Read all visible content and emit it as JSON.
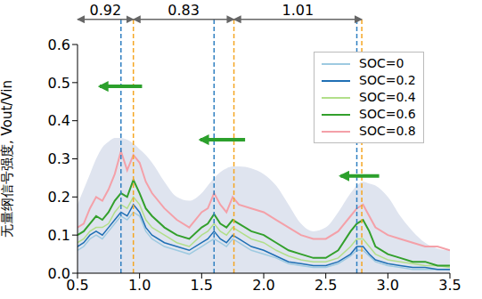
{
  "chart_data": {
    "type": "line",
    "y_label": "无量纲信号强度, Vout/Vin",
    "x": [
      0.5,
      0.55,
      0.6,
      0.65,
      0.7,
      0.75,
      0.8,
      0.85,
      0.9,
      0.95,
      1.0,
      1.05,
      1.1,
      1.2,
      1.3,
      1.4,
      1.5,
      1.55,
      1.6,
      1.65,
      1.7,
      1.75,
      1.8,
      1.9,
      2.0,
      2.1,
      2.2,
      2.3,
      2.4,
      2.5,
      2.6,
      2.7,
      2.75,
      2.8,
      2.85,
      2.9,
      3.0,
      3.1,
      3.2,
      3.3,
      3.4,
      3.5
    ],
    "series": [
      {
        "name": "SOC=0",
        "color": "#9ecae1",
        "values": [
          0.06,
          0.07,
          0.09,
          0.1,
          0.09,
          0.11,
          0.13,
          0.15,
          0.14,
          0.16,
          0.15,
          0.11,
          0.09,
          0.07,
          0.06,
          0.05,
          0.07,
          0.08,
          0.09,
          0.08,
          0.07,
          0.09,
          0.08,
          0.06,
          0.05,
          0.04,
          0.025,
          0.02,
          0.015,
          0.015,
          0.025,
          0.045,
          0.06,
          0.06,
          0.045,
          0.03,
          0.02,
          0.015,
          0.01,
          0.01,
          0.01,
          0.008
        ]
      },
      {
        "name": "SOC=0.2",
        "color": "#1f6fb4",
        "values": [
          0.07,
          0.08,
          0.1,
          0.11,
          0.1,
          0.12,
          0.14,
          0.16,
          0.15,
          0.18,
          0.16,
          0.12,
          0.1,
          0.08,
          0.07,
          0.06,
          0.08,
          0.09,
          0.11,
          0.09,
          0.08,
          0.1,
          0.09,
          0.07,
          0.06,
          0.045,
          0.03,
          0.025,
          0.02,
          0.02,
          0.03,
          0.05,
          0.07,
          0.07,
          0.05,
          0.035,
          0.025,
          0.02,
          0.015,
          0.015,
          0.01,
          0.01
        ]
      },
      {
        "name": "SOC=0.4",
        "color": "#b2df8a",
        "values": [
          0.08,
          0.09,
          0.11,
          0.12,
          0.12,
          0.13,
          0.16,
          0.18,
          0.17,
          0.2,
          0.18,
          0.14,
          0.12,
          0.1,
          0.08,
          0.07,
          0.1,
          0.11,
          0.13,
          0.11,
          0.1,
          0.12,
          0.11,
          0.09,
          0.08,
          0.06,
          0.045,
          0.035,
          0.03,
          0.03,
          0.04,
          0.07,
          0.09,
          0.09,
          0.07,
          0.05,
          0.035,
          0.03,
          0.025,
          0.02,
          0.02,
          0.015
        ]
      },
      {
        "name": "SOC=0.6",
        "color": "#33a02c",
        "values": [
          0.1,
          0.11,
          0.13,
          0.15,
          0.14,
          0.16,
          0.19,
          0.21,
          0.2,
          0.245,
          0.21,
          0.17,
          0.15,
          0.12,
          0.1,
          0.09,
          0.12,
          0.13,
          0.155,
          0.13,
          0.12,
          0.14,
          0.13,
          0.11,
          0.1,
          0.08,
          0.06,
          0.05,
          0.04,
          0.04,
          0.06,
          0.11,
          0.13,
          0.14,
          0.11,
          0.07,
          0.05,
          0.04,
          0.03,
          0.03,
          0.02,
          0.02
        ]
      },
      {
        "name": "SOC=0.8",
        "color": "#f4a0a8",
        "values": [
          0.12,
          0.13,
          0.17,
          0.2,
          0.19,
          0.22,
          0.26,
          0.32,
          0.27,
          0.31,
          0.29,
          0.24,
          0.21,
          0.17,
          0.14,
          0.12,
          0.16,
          0.17,
          0.21,
          0.18,
          0.16,
          0.2,
          0.18,
          0.17,
          0.16,
          0.14,
          0.12,
          0.1,
          0.09,
          0.09,
          0.11,
          0.15,
          0.17,
          0.18,
          0.15,
          0.12,
          0.1,
          0.09,
          0.08,
          0.07,
          0.07,
          0.06
        ]
      }
    ],
    "band": {
      "color": "#dfe4ef",
      "values": [
        0.18,
        0.22,
        0.26,
        0.3,
        0.33,
        0.345,
        0.355,
        0.355,
        0.35,
        0.34,
        0.325,
        0.31,
        0.29,
        0.24,
        0.2,
        0.19,
        0.21,
        0.23,
        0.25,
        0.265,
        0.275,
        0.28,
        0.28,
        0.275,
        0.26,
        0.23,
        0.18,
        0.13,
        0.11,
        0.12,
        0.16,
        0.21,
        0.23,
        0.24,
        0.235,
        0.23,
        0.2,
        0.15,
        0.11,
        0.08,
        0.065,
        0.06
      ]
    },
    "xlim": [
      0.5,
      3.5
    ],
    "xticks": [
      0.5,
      {
        "value": 1,
        "label": "1.0"
      },
      1.5,
      {
        "value": 2,
        "label": "2.0"
      },
      2.5,
      {
        "value": 3,
        "label": "3.0"
      },
      3.5
    ],
    "ylim": [
      0,
      0.6
    ],
    "yticks": [
      {
        "value": 0,
        "label": "0.0"
      },
      0.1,
      0.2,
      0.3,
      0.4,
      0.5,
      0.6
    ],
    "legend": "upper right",
    "vlines": [
      {
        "x": 0.85,
        "color": "#2f7fc1"
      },
      {
        "x": 1.6,
        "color": "#2f7fc1"
      },
      {
        "x": 2.75,
        "color": "#2f7fc1"
      },
      {
        "x": 0.95,
        "color": "#f5a623"
      },
      {
        "x": 1.76,
        "color": "#f5a623"
      },
      {
        "x": 2.79,
        "color": "#f5a623"
      }
    ],
    "spacings": [
      {
        "from": 0.5,
        "to": 0.95,
        "label": "0.92"
      },
      {
        "from": 0.95,
        "to": 1.76,
        "label": "0.83"
      },
      {
        "from": 1.76,
        "to": 2.79,
        "label": "1.01"
      }
    ],
    "arrows": [
      {
        "from": 1.02,
        "to": 0.68,
        "y": 0.49,
        "color": "#2ca02c"
      },
      {
        "from": 1.85,
        "to": 1.49,
        "y": 0.35,
        "color": "#2ca02c"
      },
      {
        "from": 2.93,
        "to": 2.62,
        "y": 0.255,
        "color": "#2ca02c"
      }
    ]
  }
}
